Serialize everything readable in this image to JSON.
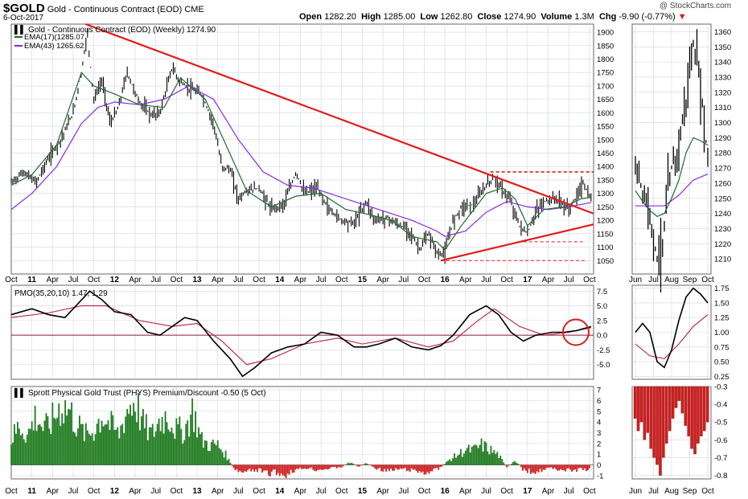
{
  "header": {
    "symbol": "$GOLD",
    "name": "Gold - Continuous Contract (EOD)",
    "exchange": "CME",
    "date": "6-Oct-2017",
    "open_label": "Open",
    "open": "1282.20",
    "high_label": "High",
    "high": "1285.00",
    "low_label": "Low",
    "low": "1262.80",
    "close_label": "Close",
    "close": "1274.90",
    "volume_label": "Volume",
    "volume": "1.3M",
    "chg_label": "Chg",
    "chg": "-9.90 (-0.77%)",
    "watermark": "@ StockCharts.com"
  },
  "colors": {
    "grid": "#cfd6e4",
    "price": "#000000",
    "ema17": "#1f6b2a",
    "ema43": "#8a2be2",
    "trend": "#e31b1b",
    "signal": "#c01e3c",
    "premium_pos": "#1e7a1e",
    "premium_neg": "#d01e1e"
  },
  "chart_data": [
    {
      "id": "price-weekly",
      "type": "line",
      "title": "Gold - Continuous Contract (EOD) (Weekly) 1274.90",
      "x_ticks": [
        "Oct",
        "11",
        "Apr",
        "Jul",
        "Oct",
        "12",
        "Apr",
        "Jul",
        "Oct",
        "13",
        "Apr",
        "Jul",
        "Oct",
        "14",
        "Apr",
        "Jul",
        "Oct",
        "15",
        "Apr",
        "Jul",
        "Oct",
        "16",
        "Apr",
        "Jul",
        "Oct",
        "17",
        "Apr",
        "Jul",
        "Oct"
      ],
      "x_range": [
        2010.75,
        2017.8
      ],
      "ylim": [
        1000,
        1930
      ],
      "y_ticks": [
        1050,
        1100,
        1150,
        1200,
        1250,
        1300,
        1350,
        1400,
        1450,
        1500,
        1550,
        1600,
        1650,
        1700,
        1750,
        1800,
        1850,
        1900
      ],
      "series": [
        {
          "name": "EMA(17) 1285.07",
          "x": [
            2010.75,
            2011.0,
            2011.3,
            2011.6,
            2011.75,
            2012.0,
            2012.3,
            2012.6,
            2012.8,
            2013.1,
            2013.35,
            2013.6,
            2013.9,
            2014.2,
            2014.5,
            2014.8,
            2015.1,
            2015.35,
            2015.6,
            2015.9,
            2016.0,
            2016.2,
            2016.5,
            2016.7,
            2016.85,
            2017.0,
            2017.2,
            2017.45,
            2017.65,
            2017.77
          ],
          "values": [
            1330,
            1370,
            1480,
            1750,
            1700,
            1670,
            1630,
            1620,
            1730,
            1650,
            1480,
            1310,
            1250,
            1290,
            1300,
            1240,
            1220,
            1200,
            1140,
            1120,
            1090,
            1180,
            1300,
            1320,
            1280,
            1180,
            1240,
            1250,
            1280,
            1285
          ]
        },
        {
          "name": "EMA(43) 1265.62",
          "x": [
            2010.75,
            2011.0,
            2011.3,
            2011.6,
            2011.8,
            2012.0,
            2012.3,
            2012.6,
            2012.9,
            2013.2,
            2013.5,
            2013.8,
            2014.1,
            2014.4,
            2014.7,
            2015.0,
            2015.3,
            2015.6,
            2015.9,
            2016.0,
            2016.25,
            2016.5,
            2016.75,
            2017.0,
            2017.25,
            2017.5,
            2017.77
          ],
          "values": [
            1240,
            1300,
            1400,
            1560,
            1620,
            1640,
            1630,
            1650,
            1700,
            1650,
            1500,
            1380,
            1330,
            1320,
            1290,
            1260,
            1230,
            1200,
            1160,
            1140,
            1160,
            1230,
            1270,
            1250,
            1240,
            1250,
            1266
          ]
        },
        {
          "name": "Gold (Weekly)",
          "x": [
            2010.75,
            2010.9,
            2011.05,
            2011.2,
            2011.35,
            2011.5,
            2011.6,
            2011.67,
            2011.75,
            2011.85,
            2011.95,
            2012.05,
            2012.15,
            2012.3,
            2012.45,
            2012.55,
            2012.7,
            2012.78,
            2012.9,
            2013.05,
            2013.2,
            2013.3,
            2013.4,
            2013.5,
            2013.6,
            2013.75,
            2013.9,
            2014.05,
            2014.2,
            2014.3,
            2014.45,
            2014.6,
            2014.75,
            2014.9,
            2015.05,
            2015.15,
            2015.3,
            2015.45,
            2015.55,
            2015.7,
            2015.8,
            2015.92,
            2016.0,
            2016.1,
            2016.2,
            2016.35,
            2016.5,
            2016.6,
            2016.7,
            2016.8,
            2016.9,
            2017.0,
            2017.1,
            2017.2,
            2017.35,
            2017.5,
            2017.6,
            2017.67,
            2017.77
          ],
          "values": [
            1340,
            1380,
            1340,
            1430,
            1500,
            1600,
            1750,
            1900,
            1650,
            1720,
            1560,
            1620,
            1750,
            1640,
            1590,
            1600,
            1770,
            1720,
            1690,
            1670,
            1560,
            1400,
            1390,
            1280,
            1310,
            1320,
            1240,
            1260,
            1380,
            1300,
            1320,
            1240,
            1200,
            1190,
            1270,
            1200,
            1210,
            1180,
            1170,
            1090,
            1150,
            1070,
            1080,
            1200,
            1250,
            1260,
            1330,
            1360,
            1310,
            1270,
            1180,
            1150,
            1230,
            1270,
            1280,
            1240,
            1290,
            1340,
            1275
          ]
        }
      ],
      "annotations": [
        "red declining trendline from 2011 high",
        "red rising trendline from 2016 low",
        "red dashed resistance 1375",
        "red dashed support 1120",
        "red dashed support 1050"
      ]
    },
    {
      "id": "price-daily",
      "type": "line",
      "x_ticks": [
        "Jun",
        "Jul",
        "Aug",
        "Sep",
        "Oct"
      ],
      "ylim": [
        1200,
        1365
      ],
      "y_ticks": [
        1210,
        1220,
        1230,
        1240,
        1250,
        1260,
        1270,
        1280,
        1290,
        1300,
        1310,
        1320,
        1330,
        1340,
        1350,
        1360
      ],
      "series": [
        {
          "name": "Close",
          "x": [
            0,
            1,
            2,
            3,
            4,
            5,
            6,
            7,
            8,
            9,
            10,
            11,
            12,
            13,
            14,
            15,
            16,
            17,
            18,
            19,
            20
          ],
          "values": [
            1270,
            1265,
            1255,
            1248,
            1240,
            1225,
            1210,
            1215,
            1230,
            1255,
            1270,
            1275,
            1285,
            1300,
            1315,
            1335,
            1350,
            1340,
            1325,
            1300,
            1275
          ]
        },
        {
          "name": "EMA(17)",
          "x": [
            0,
            2,
            4,
            6,
            8,
            10,
            12,
            14,
            16,
            18,
            20
          ],
          "values": [
            1255,
            1248,
            1242,
            1238,
            1240,
            1250,
            1262,
            1280,
            1290,
            1288,
            1285
          ]
        },
        {
          "name": "EMA(43)",
          "x": [
            0,
            4,
            8,
            12,
            16,
            20
          ],
          "values": [
            1245,
            1245,
            1245,
            1252,
            1262,
            1266
          ]
        }
      ]
    },
    {
      "id": "pmo-weekly",
      "type": "line",
      "title": "PMO(35,20,10) 1.47, 1.29",
      "ylim": [
        -7.5,
        8.5
      ],
      "y_ticks": [
        -5.0,
        -2.5,
        0.0,
        2.5,
        5.0,
        7.5
      ],
      "series": [
        {
          "name": "PMO",
          "x": [
            2010.75,
            2011.0,
            2011.2,
            2011.4,
            2011.6,
            2011.7,
            2011.85,
            2012.0,
            2012.2,
            2012.4,
            2012.55,
            2012.7,
            2012.85,
            2013.0,
            2013.2,
            2013.4,
            2013.55,
            2013.7,
            2013.9,
            2014.1,
            2014.3,
            2014.5,
            2014.7,
            2014.9,
            2015.05,
            2015.2,
            2015.4,
            2015.6,
            2015.8,
            2015.95,
            2016.1,
            2016.3,
            2016.5,
            2016.65,
            2016.8,
            2016.95,
            2017.1,
            2017.3,
            2017.45,
            2017.6,
            2017.77
          ],
          "values": [
            3.5,
            4.5,
            3.5,
            3.0,
            6.0,
            7.5,
            6.0,
            4.0,
            3.5,
            0.5,
            0.0,
            1.5,
            3.0,
            2.5,
            -1.0,
            -4.0,
            -7.0,
            -5.5,
            -3.0,
            -2.0,
            -1.5,
            0.5,
            0.0,
            -2.0,
            -2.0,
            -1.5,
            -0.5,
            -2.0,
            -2.5,
            -1.8,
            0.0,
            3.5,
            5.0,
            3.5,
            0.5,
            -1.0,
            0.0,
            0.5,
            0.5,
            0.8,
            1.47
          ]
        },
        {
          "name": "Signal",
          "x": [
            2010.75,
            2011.2,
            2011.6,
            2011.9,
            2012.3,
            2012.7,
            2013.0,
            2013.3,
            2013.6,
            2013.9,
            2014.3,
            2014.7,
            2015.0,
            2015.4,
            2015.8,
            2016.1,
            2016.4,
            2016.6,
            2016.9,
            2017.2,
            2017.5,
            2017.77
          ],
          "values": [
            3.0,
            3.8,
            5.0,
            5.0,
            2.5,
            1.5,
            2.0,
            -1.0,
            -5.0,
            -4.0,
            -1.5,
            -0.5,
            -1.5,
            -0.5,
            -2.0,
            -1.0,
            2.5,
            4.5,
            1.5,
            0.0,
            0.5,
            1.29
          ]
        }
      ]
    },
    {
      "id": "pmo-daily",
      "type": "line",
      "ylim": [
        0.2,
        1.8
      ],
      "y_ticks": [
        0.25,
        0.5,
        0.75,
        1.0,
        1.25,
        1.5,
        1.75
      ],
      "series": [
        {
          "name": "PMO",
          "x": [
            0,
            2,
            4,
            6,
            8,
            10,
            12,
            14,
            16,
            18,
            20
          ],
          "values": [
            1.0,
            1.15,
            1.0,
            0.5,
            0.4,
            0.7,
            1.2,
            1.6,
            1.75,
            1.65,
            1.5
          ]
        },
        {
          "name": "Signal",
          "x": [
            0,
            4,
            8,
            12,
            16,
            20
          ],
          "values": [
            0.8,
            0.6,
            0.55,
            0.8,
            1.1,
            1.3
          ]
        }
      ]
    },
    {
      "id": "phys-weekly",
      "type": "bar",
      "title": "Sprott Physical Gold Trust (PHYS) Premium/Discount -0.50 (5 Oct)",
      "ylim": [
        -1.3,
        7.3
      ],
      "y_ticks": [
        -1,
        0,
        1,
        2,
        3,
        4,
        5,
        6,
        7
      ],
      "series": [
        {
          "name": "Premium/Discount",
          "x": [
            2010.75,
            2010.85,
            2010.95,
            2011.05,
            2011.15,
            2011.25,
            2011.35,
            2011.45,
            2011.55,
            2011.65,
            2011.75,
            2011.85,
            2011.95,
            2012.05,
            2012.15,
            2012.25,
            2012.35,
            2012.45,
            2012.55,
            2012.65,
            2012.75,
            2012.85,
            2012.95,
            2013.05,
            2013.15,
            2013.25,
            2013.35,
            2013.45,
            2013.55,
            2013.65,
            2013.75,
            2013.85,
            2013.95,
            2014.05,
            2014.15,
            2014.25,
            2014.35,
            2014.45,
            2014.55,
            2014.65,
            2014.75,
            2014.85,
            2014.95,
            2015.05,
            2015.15,
            2015.25,
            2015.35,
            2015.45,
            2015.55,
            2015.65,
            2015.75,
            2015.85,
            2015.95,
            2016.05,
            2016.15,
            2016.25,
            2016.35,
            2016.45,
            2016.55,
            2016.65,
            2016.75,
            2016.85,
            2016.95,
            2017.05,
            2017.15,
            2017.25,
            2017.35,
            2017.45,
            2017.55,
            2017.65,
            2017.75
          ],
          "values": [
            2.5,
            4.0,
            3.0,
            5.0,
            3.5,
            4.5,
            6.0,
            5.5,
            4.0,
            3.0,
            3.5,
            5.0,
            4.0,
            3.0,
            5.5,
            6.5,
            4.0,
            3.0,
            4.5,
            5.0,
            3.5,
            3.5,
            5.5,
            2.5,
            2.0,
            2.0,
            1.0,
            -0.5,
            -0.8,
            -0.6,
            -0.5,
            -0.9,
            -0.7,
            -1.1,
            -0.6,
            -0.4,
            -0.3,
            -0.5,
            -0.4,
            -0.3,
            -0.2,
            0.3,
            -0.2,
            0.2,
            -0.3,
            -0.5,
            -0.6,
            -0.4,
            -0.5,
            -0.6,
            -0.8,
            -0.6,
            -0.3,
            0.5,
            1.0,
            1.5,
            1.5,
            2.0,
            1.5,
            1.0,
            -0.3,
            0.5,
            -0.5,
            -0.7,
            -0.6,
            -0.3,
            -0.4,
            -0.5,
            -0.6,
            -0.4,
            -0.5
          ]
        }
      ]
    },
    {
      "id": "phys-daily",
      "type": "bar",
      "ylim": [
        -0.82,
        -0.3
      ],
      "y_ticks": [
        -0.3,
        -0.4,
        -0.5,
        -0.6,
        -0.7,
        -0.8
      ],
      "series": [
        {
          "name": "Premium/Discount",
          "x": [
            0,
            1,
            2,
            3,
            4,
            5,
            6,
            7,
            8,
            9,
            10,
            11,
            12,
            13,
            14,
            15,
            16,
            17,
            18,
            19,
            20,
            21,
            22,
            23
          ],
          "values": [
            -0.48,
            -0.55,
            -0.5,
            -0.6,
            -0.56,
            -0.65,
            -0.7,
            -0.74,
            -0.8,
            -0.7,
            -0.62,
            -0.55,
            -0.48,
            -0.42,
            -0.38,
            -0.45,
            -0.52,
            -0.58,
            -0.65,
            -0.68,
            -0.62,
            -0.58,
            -0.55,
            -0.5
          ]
        }
      ]
    }
  ],
  "axes": {
    "weekly_x_ticks": [
      "Oct",
      "11",
      "Apr",
      "Jul",
      "Oct",
      "12",
      "Apr",
      "Jul",
      "Oct",
      "13",
      "Apr",
      "Jul",
      "Oct",
      "14",
      "Apr",
      "Jul",
      "Oct",
      "15",
      "Apr",
      "Jul",
      "Oct",
      "16",
      "Apr",
      "Jul",
      "Oct",
      "17",
      "Apr",
      "Jul",
      "Oct"
    ],
    "daily_x_ticks": [
      "Jun",
      "Jul",
      "Aug",
      "Sep",
      "Oct"
    ]
  }
}
